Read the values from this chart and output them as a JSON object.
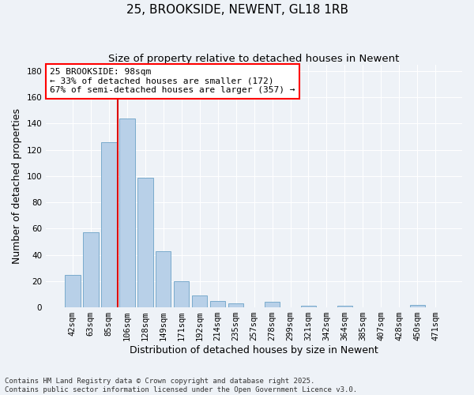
{
  "title": "25, BROOKSIDE, NEWENT, GL18 1RB",
  "subtitle": "Size of property relative to detached houses in Newent",
  "xlabel": "Distribution of detached houses by size in Newent",
  "ylabel": "Number of detached properties",
  "bar_labels": [
    "42sqm",
    "63sqm",
    "85sqm",
    "106sqm",
    "128sqm",
    "149sqm",
    "171sqm",
    "192sqm",
    "214sqm",
    "235sqm",
    "257sqm",
    "278sqm",
    "299sqm",
    "321sqm",
    "342sqm",
    "364sqm",
    "385sqm",
    "407sqm",
    "428sqm",
    "450sqm",
    "471sqm"
  ],
  "bar_values": [
    25,
    57,
    126,
    144,
    99,
    43,
    20,
    9,
    5,
    3,
    0,
    4,
    0,
    1,
    0,
    1,
    0,
    0,
    0,
    2,
    0
  ],
  "bar_color": "#b8d0e8",
  "bar_edge_color": "#7aabcc",
  "vline_x": 2.5,
  "vline_color": "#dd0000",
  "annotation_text": "25 BROOKSIDE: 98sqm\n← 33% of detached houses are smaller (172)\n67% of semi-detached houses are larger (357) →",
  "ylim": [
    0,
    185
  ],
  "yticks": [
    0,
    20,
    40,
    60,
    80,
    100,
    120,
    140,
    160,
    180
  ],
  "bg_color": "#eef2f7",
  "grid_color": "#ffffff",
  "footer_text": "Contains HM Land Registry data © Crown copyright and database right 2025.\nContains public sector information licensed under the Open Government Licence v3.0.",
  "title_fontsize": 11,
  "subtitle_fontsize": 9.5,
  "axis_label_fontsize": 9,
  "tick_fontsize": 7.5,
  "annotation_fontsize": 8,
  "footer_fontsize": 6.5
}
